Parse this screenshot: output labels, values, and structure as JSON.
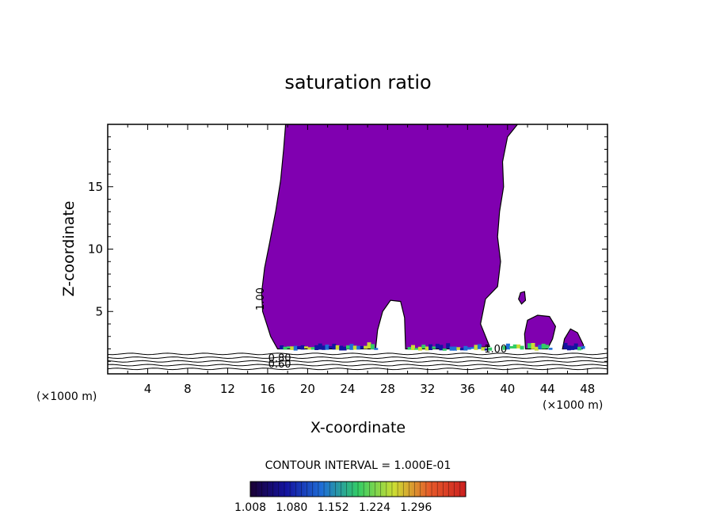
{
  "chart_data": {
    "type": "heatmap",
    "title": "saturation ratio",
    "xlabel": "X-coordinate",
    "ylabel": "Z-coordinate",
    "x_unit": "(×1000 m)",
    "xlim": [
      0,
      50
    ],
    "ylim": [
      0,
      20
    ],
    "x_ticks": [
      4,
      8,
      12,
      16,
      20,
      24,
      28,
      32,
      36,
      40,
      44,
      48
    ],
    "y_ticks": [
      5,
      10,
      15
    ],
    "contour_interval_text": "CONTOUR INTERVAL = 1.000E-01",
    "contour_labels": [
      "1.00",
      "0.80",
      "0.60"
    ],
    "colorbar": {
      "ticks": [
        1.008,
        1.08,
        1.152,
        1.224,
        1.296
      ],
      "tick_labels": [
        "1.008",
        "1.080",
        "1.152",
        "1.224",
        "1.296"
      ],
      "colors": [
        "#1a0033",
        "#1414a0",
        "#1f6ed6",
        "#33cc66",
        "#ccdd33",
        "#e65a2a",
        "#cc2020"
      ]
    },
    "fill_color": "#8000b0",
    "saturated_region": {
      "description_free": true,
      "main_body": [
        [
          17.8,
          20
        ],
        [
          41.0,
          20
        ],
        [
          40.0,
          19
        ],
        [
          39.5,
          17
        ],
        [
          39.6,
          15
        ],
        [
          39.2,
          13
        ],
        [
          39.0,
          11
        ],
        [
          39.3,
          9
        ],
        [
          39.0,
          7
        ],
        [
          37.8,
          6
        ],
        [
          37.3,
          4
        ],
        [
          38.2,
          2.2
        ],
        [
          36.0,
          2.0
        ],
        [
          29.8,
          2.0
        ],
        [
          29.7,
          4.5
        ],
        [
          29.3,
          5.8
        ],
        [
          28.3,
          5.9
        ],
        [
          27.5,
          5.0
        ],
        [
          27.0,
          3.5
        ],
        [
          26.8,
          2.0
        ],
        [
          17.0,
          2.0
        ],
        [
          16.3,
          3.0
        ],
        [
          15.9,
          4.0
        ],
        [
          15.5,
          5.0
        ],
        [
          15.4,
          6.5
        ],
        [
          15.7,
          8.5
        ],
        [
          16.2,
          10.5
        ],
        [
          16.8,
          13.0
        ],
        [
          17.3,
          15.5
        ],
        [
          17.6,
          18.0
        ]
      ],
      "small_cells": [
        [
          [
            41.8,
            2.0
          ],
          [
            41.7,
            3.2
          ],
          [
            42.0,
            4.3
          ],
          [
            43.0,
            4.7
          ],
          [
            44.2,
            4.6
          ],
          [
            44.8,
            3.8
          ],
          [
            44.5,
            2.8
          ],
          [
            44.0,
            2.0
          ]
        ],
        [
          [
            45.5,
            2.0
          ],
          [
            45.7,
            2.8
          ],
          [
            46.3,
            3.6
          ],
          [
            47.0,
            3.3
          ],
          [
            47.6,
            2.3
          ],
          [
            47.5,
            2.0
          ]
        ],
        [
          [
            41.1,
            6.0
          ],
          [
            41.3,
            6.5
          ],
          [
            41.7,
            6.6
          ],
          [
            41.8,
            5.9
          ],
          [
            41.4,
            5.6
          ]
        ]
      ]
    },
    "isolines_below_z": [
      0.4,
      0.7,
      1.0,
      1.3,
      1.6
    ]
  }
}
